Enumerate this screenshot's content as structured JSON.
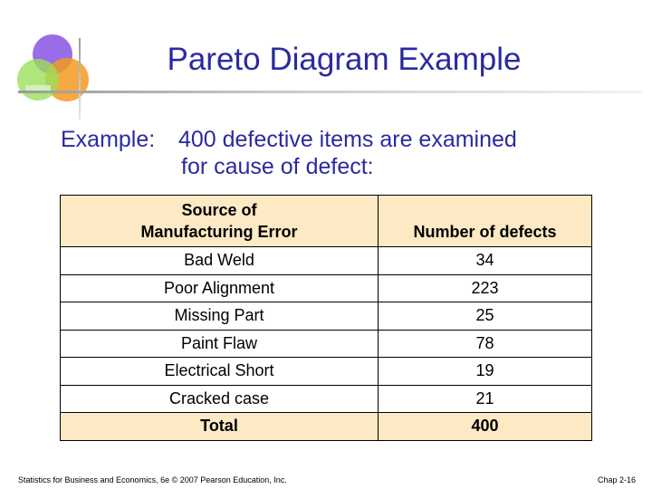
{
  "slide": {
    "title": "Pareto Diagram Example",
    "intro_lead": "Example:",
    "intro_line1": "400 defective items are examined",
    "intro_line2": "for cause of defect:",
    "footer_left": "Statistics for Business and Economics, 6e © 2007 Pearson Education, Inc.",
    "footer_right": "Chap 2-16"
  },
  "table": {
    "headers": [
      "Source of Manufacturing Error",
      "Number of defects"
    ],
    "header_col1_line1": "Source of",
    "header_col1_line2": "Manufacturing Error",
    "rows": [
      {
        "source": "Bad Weld",
        "count": "34"
      },
      {
        "source": "Poor Alignment",
        "count": "223"
      },
      {
        "source": "Missing Part",
        "count": "25"
      },
      {
        "source": "Paint Flaw",
        "count": "78"
      },
      {
        "source": "Electrical Short",
        "count": "19"
      },
      {
        "source": "Cracked case",
        "count": "21"
      }
    ],
    "total": {
      "label": "Total",
      "count": "400"
    }
  },
  "colors": {
    "title": "#2a2aa0",
    "header_fill": "#fde9c4",
    "logo_purple": "#8e5ce6",
    "logo_orange": "#f39a1e",
    "logo_green": "#9ae05a"
  },
  "icons": [
    "decorative-circles-logo"
  ]
}
